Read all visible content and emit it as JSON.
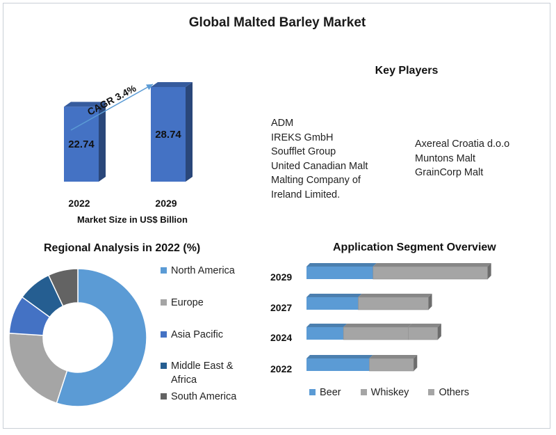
{
  "title": "Global Malted Barley Market",
  "colors": {
    "blue": "#4472C4",
    "light_blue": "#5B9BD5",
    "gray": "#A5A5A5",
    "dark_blue": "#255E91",
    "dark_gray": "#636363"
  },
  "key_players": {
    "heading": "Key Players",
    "column_1": [
      "ADM",
      "IREKS GmbH",
      "Soufflet Group",
      "United Canadian Malt",
      "Malting Company of",
      "Ireland Limited."
    ],
    "column_2": [
      "Axereal Croatia d.o.o",
      "Muntons Malt",
      "GrainCorp Malt"
    ]
  },
  "chart_data": [
    {
      "type": "bar",
      "title": "",
      "categories": [
        "2022",
        "2029"
      ],
      "values": [
        22.74,
        28.74
      ],
      "value_labels": [
        "22.74",
        "28.74"
      ],
      "xlabel": "Market Size in US$ Billion",
      "annotation": "CAGR 3.4%",
      "color": "#4472C4"
    },
    {
      "type": "pie",
      "title": "Regional Analysis in 2022 (%)",
      "donut": true,
      "labels": [
        "North America",
        "Europe",
        "Asia Pacific",
        "Middle East & Africa",
        "South America"
      ],
      "values": [
        55,
        21,
        9,
        8,
        7
      ],
      "colors": [
        "#5B9BD5",
        "#A5A5A5",
        "#4472C4",
        "#255E91",
        "#636363"
      ],
      "legend": "right"
    },
    {
      "type": "bar",
      "orientation": "horizontal",
      "stacked": true,
      "title": "Application Segment Overview",
      "categories": [
        "2029",
        "2027",
        "2024",
        "2022"
      ],
      "series": [
        {
          "name": "Beer",
          "values": [
            36,
            28,
            20,
            34
          ],
          "color": "#5B9BD5"
        },
        {
          "name": "Whiskey",
          "values": [
            62,
            38,
            35,
            24
          ],
          "color": "#A5A5A5"
        },
        {
          "name": "Others",
          "values": [
            0,
            0,
            16,
            0
          ],
          "color": "#A5A5A5"
        }
      ],
      "legend": "bottom"
    }
  ]
}
